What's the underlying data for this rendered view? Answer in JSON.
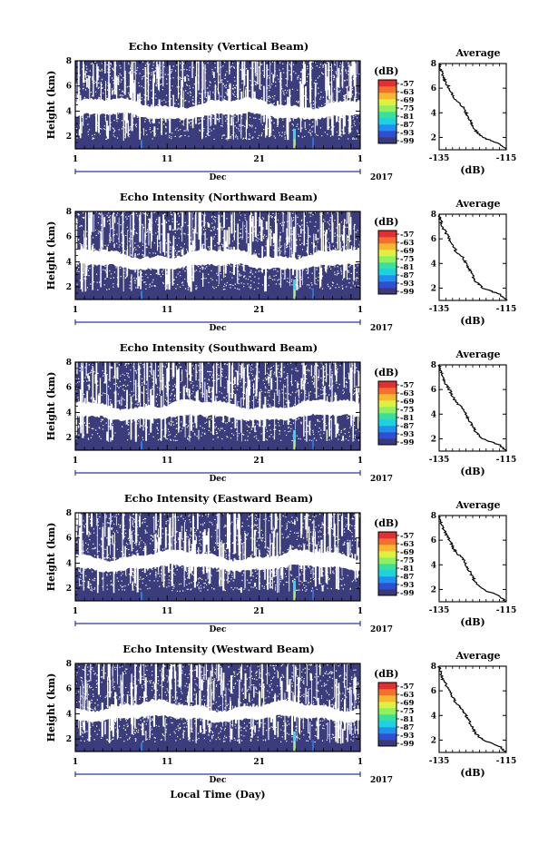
{
  "figure": {
    "xlabel": "Local Time (Day)",
    "month_label": "Dec",
    "year_label": "2017",
    "colorbar_unit": "(dB)",
    "colorbar_ticks": [
      "-57",
      "-63",
      "-69",
      "-75",
      "-81",
      "-87",
      "-93",
      "-99"
    ],
    "colorbar_colors": [
      "#3a3a7a",
      "#2f4fd0",
      "#1f8ff0",
      "#1fd0e0",
      "#38e0a0",
      "#90f060",
      "#e0f040",
      "#f5b830",
      "#f57030",
      "#e03030"
    ],
    "background_color": "#3b3c7c",
    "gap_color": "#ffffff"
  },
  "chart_data": [
    {
      "type": "heatmap",
      "title": "Echo Intensity (Vertical Beam)",
      "ylabel": "Height (km)",
      "x_ticks": [
        "1",
        "11",
        "21",
        "1"
      ],
      "y_ticks": [
        "2",
        "4",
        "6",
        "8"
      ],
      "ylim": [
        1,
        8
      ],
      "avg_profile": {
        "title": "Average",
        "xlabel": "(dB)",
        "x_ticks": [
          "-135",
          "-115"
        ],
        "y_ticks": [
          "2",
          "4",
          "6",
          "8"
        ],
        "xlim": [
          -135,
          -115
        ],
        "ylim": [
          1,
          8
        ],
        "heights": [
          1.0,
          1.5,
          2.0,
          2.5,
          3.0,
          3.5,
          4.0,
          4.5,
          5.0,
          5.5,
          6.0,
          6.5,
          7.0,
          7.5,
          8.0
        ],
        "values": [
          -115,
          -117,
          -122,
          -124,
          -125,
          -126,
          -127,
          -128,
          -130,
          -131,
          -132,
          -133,
          -134,
          -134.5,
          -135
        ]
      }
    },
    {
      "type": "heatmap",
      "title": "Echo Intensity (Northward Beam)",
      "ylabel": "Height (km)",
      "x_ticks": [
        "1",
        "11",
        "21",
        "1"
      ],
      "y_ticks": [
        "2",
        "4",
        "6",
        "8"
      ],
      "ylim": [
        1,
        8
      ],
      "avg_profile": {
        "title": "Average",
        "xlabel": "(dB)",
        "x_ticks": [
          "-135",
          "-115"
        ],
        "y_ticks": [
          "2",
          "4",
          "6",
          "8"
        ],
        "xlim": [
          -135,
          -115
        ],
        "ylim": [
          1,
          8
        ],
        "heights": [
          1.0,
          1.5,
          2.0,
          2.5,
          3.0,
          3.5,
          4.0,
          4.5,
          5.0,
          5.5,
          6.0,
          6.5,
          7.0,
          7.5,
          8.0
        ],
        "values": [
          -115,
          -117,
          -122,
          -124,
          -125,
          -126,
          -127,
          -128,
          -130,
          -131,
          -132,
          -133,
          -134,
          -134.5,
          -135
        ]
      }
    },
    {
      "type": "heatmap",
      "title": "Echo Intensity (Southward Beam)",
      "ylabel": "Height (km)",
      "x_ticks": [
        "1",
        "11",
        "21",
        "1"
      ],
      "y_ticks": [
        "2",
        "4",
        "6",
        "8"
      ],
      "ylim": [
        1,
        8
      ],
      "avg_profile": {
        "title": "Average",
        "xlabel": "(dB)",
        "x_ticks": [
          "-135",
          "-115"
        ],
        "y_ticks": [
          "2",
          "4",
          "6",
          "8"
        ],
        "xlim": [
          -135,
          -115
        ],
        "ylim": [
          1,
          8
        ],
        "heights": [
          1.0,
          1.5,
          2.0,
          2.5,
          3.0,
          3.5,
          4.0,
          4.5,
          5.0,
          5.5,
          6.0,
          6.5,
          7.0,
          7.5,
          8.0
        ],
        "values": [
          -115,
          -117,
          -122,
          -124,
          -125,
          -126,
          -127,
          -128,
          -130,
          -131,
          -132,
          -133,
          -134,
          -134.5,
          -135
        ]
      }
    },
    {
      "type": "heatmap",
      "title": "Echo Intensity (Eastward Beam)",
      "ylabel": "Height (km)",
      "x_ticks": [
        "1",
        "11",
        "21",
        "1"
      ],
      "y_ticks": [
        "2",
        "4",
        "6",
        "8"
      ],
      "ylim": [
        1,
        8
      ],
      "avg_profile": {
        "title": "Average",
        "xlabel": "(dB)",
        "x_ticks": [
          "-135",
          "-115"
        ],
        "y_ticks": [
          "2",
          "4",
          "6",
          "8"
        ],
        "xlim": [
          -135,
          -115
        ],
        "ylim": [
          1,
          8
        ],
        "heights": [
          1.0,
          1.5,
          2.0,
          2.5,
          3.0,
          3.5,
          4.0,
          4.5,
          5.0,
          5.5,
          6.0,
          6.5,
          7.0,
          7.5,
          8.0
        ],
        "values": [
          -115,
          -117,
          -122,
          -124,
          -125,
          -126,
          -127,
          -128,
          -130,
          -131,
          -132,
          -133,
          -134,
          -134.5,
          -135
        ]
      }
    },
    {
      "type": "heatmap",
      "title": "Echo Intensity (Westward Beam)",
      "ylabel": "Height (km)",
      "x_ticks": [
        "1",
        "11",
        "21",
        "1"
      ],
      "y_ticks": [
        "2",
        "4",
        "6",
        "8"
      ],
      "ylim": [
        1,
        8
      ],
      "avg_profile": {
        "title": "Average",
        "xlabel": "(dB)",
        "x_ticks": [
          "-135",
          "-115"
        ],
        "y_ticks": [
          "2",
          "4",
          "6",
          "8"
        ],
        "xlim": [
          -135,
          -115
        ],
        "ylim": [
          1,
          8
        ],
        "heights": [
          1.0,
          1.5,
          2.0,
          2.5,
          3.0,
          3.5,
          4.0,
          4.5,
          5.0,
          5.5,
          6.0,
          6.5,
          7.0,
          7.5,
          8.0
        ],
        "values": [
          -115,
          -117,
          -122,
          -124,
          -125,
          -126,
          -127,
          -128,
          -130,
          -131,
          -132,
          -133,
          -134,
          -134.5,
          -135
        ]
      }
    }
  ]
}
